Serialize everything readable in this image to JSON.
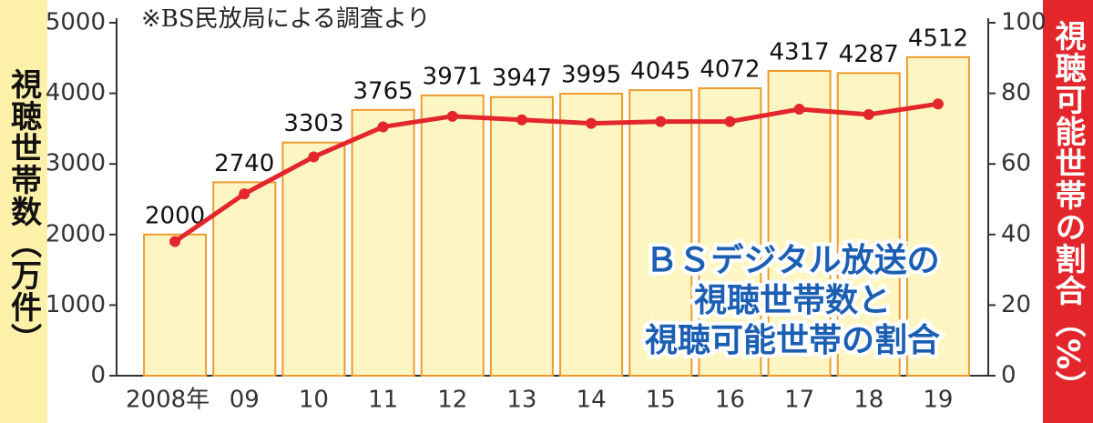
{
  "chart_data": {
    "type": "bar_line",
    "title": [
      "ＢＳデジタル放送の",
      "視聴世帯数と",
      "視聴可能世帯の割合"
    ],
    "annotation": "※BS民放局による調査より",
    "y_label": "視聴世帯数（万件）",
    "y2_label": "視聴可能世帯の割合（%）",
    "categories": [
      "2008年",
      "09",
      "10",
      "11",
      "12",
      "13",
      "14",
      "15",
      "16",
      "17",
      "18",
      "19"
    ],
    "series": [
      {
        "name": "視聴世帯数",
        "type": "bar",
        "color": "#fdf6c3",
        "edge_color": "#ee9a2e",
        "values": [
          2000,
          2740,
          3303,
          3765,
          3971,
          3947,
          3995,
          4045,
          4072,
          4317,
          4287,
          4512
        ]
      },
      {
        "name": "視聴可能世帯の割合",
        "type": "line",
        "axis": "y2",
        "color": "#e3262b",
        "values": [
          38,
          51.5,
          62,
          70.5,
          73.5,
          72.5,
          71.5,
          72,
          72,
          75.5,
          74,
          77
        ]
      }
    ],
    "ylim": [
      0,
      5000
    ],
    "yticks": [
      0,
      1000,
      2000,
      3000,
      4000,
      5000
    ],
    "y2lim": [
      0,
      100
    ],
    "y2ticks": [
      0,
      20,
      40,
      60,
      80,
      100
    ]
  }
}
